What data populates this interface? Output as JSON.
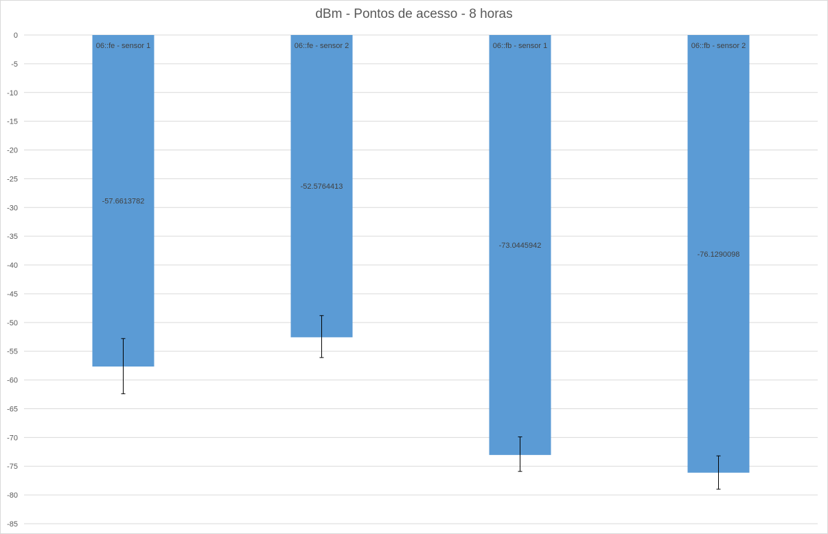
{
  "chart_data": {
    "type": "bar",
    "title": "dBm - Pontos de acesso - 8 horas",
    "xlabel": "",
    "ylabel": "",
    "categories": [
      "06::fe - sensor 1",
      "06::fe - sensor 2",
      "06::fb - sensor 1",
      "06::fb - sensor 2"
    ],
    "values": [
      -57.6613782,
      -52.5764413,
      -73.0445942,
      -76.1290098
    ],
    "value_labels": [
      "-57.6613782",
      "-52.5764413",
      "-73.0445942",
      "-76.1290098"
    ],
    "error_bars": [
      {
        "low": -62.4,
        "high": -52.8
      },
      {
        "low": -56.1,
        "high": -48.8
      },
      {
        "low": -75.9,
        "high": -69.9
      },
      {
        "low": -79.0,
        "high": -73.2
      }
    ],
    "ylim": [
      -85,
      0
    ],
    "yticks": [
      0,
      -5,
      -10,
      -15,
      -20,
      -25,
      -30,
      -35,
      -40,
      -45,
      -50,
      -55,
      -60,
      -65,
      -70,
      -75,
      -80,
      -85
    ],
    "grid": true,
    "legend": "none",
    "colors": {
      "bar": "#5b9bd5",
      "grid": "#d9d9d9",
      "tick_text": "#595959",
      "label_text": "#404040",
      "error_bar": "#000000"
    }
  }
}
